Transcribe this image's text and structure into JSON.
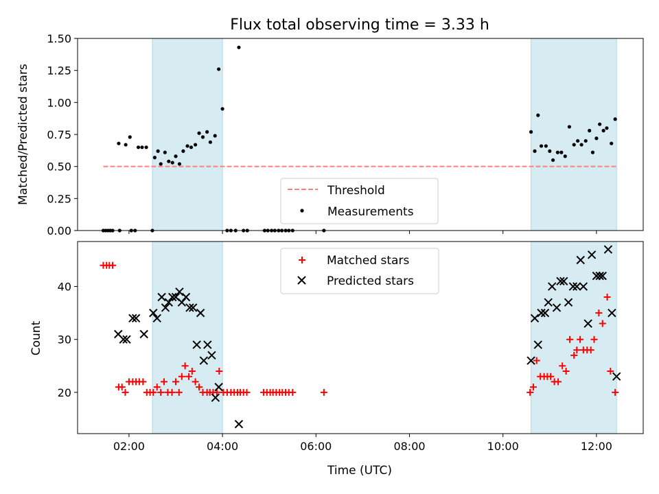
{
  "chart_data": {
    "title": "Flux total observing time = 3.33 h",
    "colors": {
      "threshold": "#ff7f7f",
      "measurements": "#000000",
      "matched": "#ff0000",
      "predicted": "#000000",
      "shade": "#add8e6"
    },
    "shaded_intervals_hours": [
      [
        2.5,
        4.0
      ],
      [
        10.6,
        12.43
      ]
    ],
    "x_axis": {
      "label": "Time (UTC)",
      "range_hours": [
        0.9,
        13.0
      ],
      "ticks": [
        2,
        4,
        6,
        8,
        10,
        12
      ],
      "tick_labels": [
        "02:00",
        "04:00",
        "06:00",
        "08:00",
        "10:00",
        "12:00"
      ]
    },
    "panels": [
      {
        "type": "scatter",
        "ylabel": "Matched/Predicted stars",
        "ylim": [
          0,
          1.5
        ],
        "yticks": [
          0.0,
          0.25,
          0.5,
          0.75,
          1.0,
          1.25,
          1.5
        ],
        "ytick_labels": [
          "0.00",
          "0.25",
          "0.50",
          "0.75",
          "1.00",
          "1.25",
          "1.50"
        ],
        "legend": {
          "location": "lower-center",
          "entries": [
            "Threshold",
            "Measurements"
          ]
        },
        "threshold": {
          "value": 0.5,
          "x_range": [
            1.45,
            12.43
          ]
        },
        "measurements": [
          [
            1.45,
            0
          ],
          [
            1.5,
            0
          ],
          [
            1.55,
            0
          ],
          [
            1.6,
            0
          ],
          [
            1.65,
            0
          ],
          [
            1.78,
            0.68
          ],
          [
            1.8,
            0
          ],
          [
            1.93,
            0.67
          ],
          [
            2.02,
            0.73
          ],
          [
            2.05,
            0
          ],
          [
            2.13,
            0
          ],
          [
            2.2,
            0.65
          ],
          [
            2.28,
            0.65
          ],
          [
            2.37,
            0.65
          ],
          [
            2.5,
            0
          ],
          [
            2.55,
            0.57
          ],
          [
            2.62,
            0.62
          ],
          [
            2.68,
            0.52
          ],
          [
            2.77,
            0.61
          ],
          [
            2.85,
            0.54
          ],
          [
            2.93,
            0.53
          ],
          [
            3.0,
            0.58
          ],
          [
            3.08,
            0.52
          ],
          [
            3.16,
            0.62
          ],
          [
            3.25,
            0.66
          ],
          [
            3.33,
            0.65
          ],
          [
            3.42,
            0.67
          ],
          [
            3.5,
            0.76
          ],
          [
            3.58,
            0.73
          ],
          [
            3.67,
            0.77
          ],
          [
            3.74,
            0.69
          ],
          [
            3.84,
            0.74
          ],
          [
            3.92,
            1.26
          ],
          [
            4.0,
            0.95
          ],
          [
            4.1,
            0
          ],
          [
            4.18,
            0
          ],
          [
            4.28,
            0
          ],
          [
            4.35,
            1.43
          ],
          [
            4.45,
            0
          ],
          [
            4.53,
            0
          ],
          [
            4.9,
            0
          ],
          [
            4.97,
            0
          ],
          [
            5.05,
            0
          ],
          [
            5.12,
            0
          ],
          [
            5.2,
            0
          ],
          [
            5.27,
            0
          ],
          [
            5.35,
            0
          ],
          [
            5.42,
            0
          ],
          [
            5.5,
            0
          ],
          [
            6.17,
            0
          ],
          [
            10.6,
            0.77
          ],
          [
            10.68,
            0.62
          ],
          [
            10.75,
            0.9
          ],
          [
            10.82,
            0.66
          ],
          [
            10.92,
            0.66
          ],
          [
            11.0,
            0.62
          ],
          [
            11.07,
            0.55
          ],
          [
            11.17,
            0.61
          ],
          [
            11.25,
            0.61
          ],
          [
            11.33,
            0.58
          ],
          [
            11.42,
            0.81
          ],
          [
            11.52,
            0.67
          ],
          [
            11.6,
            0.7
          ],
          [
            11.68,
            0.67
          ],
          [
            11.77,
            0.7
          ],
          [
            11.85,
            0.78
          ],
          [
            11.92,
            0.61
          ],
          [
            12.0,
            0.72
          ],
          [
            12.07,
            0.83
          ],
          [
            12.15,
            0.78
          ],
          [
            12.22,
            0.8
          ],
          [
            12.32,
            0.68
          ],
          [
            12.4,
            0.87
          ]
        ]
      },
      {
        "type": "scatter",
        "ylabel": "Count",
        "ylim": [
          12.2,
          48.5
        ],
        "yticks": [
          20,
          30,
          40
        ],
        "ytick_labels": [
          "20",
          "30",
          "40"
        ],
        "legend": {
          "location": "upper-center",
          "entries": [
            "Matched stars",
            "Predicted stars"
          ]
        },
        "matched_stars": [
          [
            1.45,
            44
          ],
          [
            1.52,
            44
          ],
          [
            1.58,
            44
          ],
          [
            1.65,
            44
          ],
          [
            1.78,
            21
          ],
          [
            1.85,
            21
          ],
          [
            1.92,
            20
          ],
          [
            2.0,
            22
          ],
          [
            2.08,
            22
          ],
          [
            2.15,
            22
          ],
          [
            2.22,
            22
          ],
          [
            2.3,
            22
          ],
          [
            2.38,
            20
          ],
          [
            2.45,
            20
          ],
          [
            2.52,
            20
          ],
          [
            2.6,
            21
          ],
          [
            2.68,
            20
          ],
          [
            2.75,
            22
          ],
          [
            2.83,
            20
          ],
          [
            2.92,
            20
          ],
          [
            3.0,
            22
          ],
          [
            3.07,
            20
          ],
          [
            3.13,
            23
          ],
          [
            3.2,
            25
          ],
          [
            3.28,
            23
          ],
          [
            3.35,
            24
          ],
          [
            3.42,
            22
          ],
          [
            3.5,
            21
          ],
          [
            3.58,
            20
          ],
          [
            3.67,
            20
          ],
          [
            3.73,
            20
          ],
          [
            3.8,
            20
          ],
          [
            3.88,
            20
          ],
          [
            3.93,
            24
          ],
          [
            4.02,
            20
          ],
          [
            4.1,
            20
          ],
          [
            4.18,
            20
          ],
          [
            4.25,
            20
          ],
          [
            4.32,
            20
          ],
          [
            4.38,
            20
          ],
          [
            4.45,
            20
          ],
          [
            4.52,
            20
          ],
          [
            4.88,
            20
          ],
          [
            4.95,
            20
          ],
          [
            5.02,
            20
          ],
          [
            5.08,
            20
          ],
          [
            5.15,
            20
          ],
          [
            5.22,
            20
          ],
          [
            5.28,
            20
          ],
          [
            5.35,
            20
          ],
          [
            5.42,
            20
          ],
          [
            5.5,
            20
          ],
          [
            6.17,
            20
          ],
          [
            10.58,
            20
          ],
          [
            10.65,
            21
          ],
          [
            10.72,
            26
          ],
          [
            10.8,
            23
          ],
          [
            10.88,
            23
          ],
          [
            10.95,
            23
          ],
          [
            11.02,
            23
          ],
          [
            11.1,
            22
          ],
          [
            11.18,
            22
          ],
          [
            11.27,
            25
          ],
          [
            11.35,
            24
          ],
          [
            11.43,
            30
          ],
          [
            11.52,
            27
          ],
          [
            11.58,
            28
          ],
          [
            11.65,
            30
          ],
          [
            11.72,
            28
          ],
          [
            11.8,
            28
          ],
          [
            11.88,
            28
          ],
          [
            11.95,
            30
          ],
          [
            12.05,
            35
          ],
          [
            12.13,
            33
          ],
          [
            12.23,
            38
          ],
          [
            12.3,
            24
          ],
          [
            12.4,
            20
          ]
        ],
        "predicted_stars": [
          [
            1.77,
            31
          ],
          [
            1.88,
            30
          ],
          [
            1.95,
            30
          ],
          [
            2.08,
            34
          ],
          [
            2.15,
            34
          ],
          [
            2.32,
            31
          ],
          [
            2.52,
            35
          ],
          [
            2.6,
            34
          ],
          [
            2.7,
            38
          ],
          [
            2.78,
            36
          ],
          [
            2.85,
            37
          ],
          [
            2.93,
            38
          ],
          [
            3.0,
            38
          ],
          [
            3.08,
            39
          ],
          [
            3.13,
            37
          ],
          [
            3.22,
            38
          ],
          [
            3.3,
            36
          ],
          [
            3.37,
            36
          ],
          [
            3.45,
            29
          ],
          [
            3.53,
            35
          ],
          [
            3.6,
            26
          ],
          [
            3.68,
            29
          ],
          [
            3.77,
            27
          ],
          [
            3.85,
            19
          ],
          [
            3.92,
            21
          ],
          [
            4.35,
            14
          ],
          [
            10.6,
            26
          ],
          [
            10.68,
            34
          ],
          [
            10.75,
            29
          ],
          [
            10.82,
            35
          ],
          [
            10.9,
            35
          ],
          [
            10.97,
            37
          ],
          [
            11.05,
            40
          ],
          [
            11.15,
            36
          ],
          [
            11.23,
            41
          ],
          [
            11.3,
            41
          ],
          [
            11.4,
            37
          ],
          [
            11.5,
            40
          ],
          [
            11.58,
            40
          ],
          [
            11.66,
            45
          ],
          [
            11.72,
            40
          ],
          [
            11.82,
            33
          ],
          [
            11.9,
            46
          ],
          [
            12.0,
            42
          ],
          [
            12.07,
            42
          ],
          [
            12.13,
            42
          ],
          [
            12.25,
            47
          ],
          [
            12.33,
            35
          ],
          [
            12.43,
            23
          ]
        ]
      }
    ]
  }
}
